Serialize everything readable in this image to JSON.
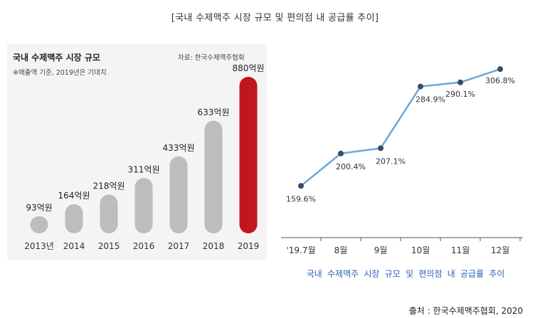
{
  "page": {
    "title": "[국내 수제맥주 시장 규모 및 편의점 내 공급률 추이]",
    "caption": "국내 수제맥주 시장 규모 및 편의점 내 공급률 추이",
    "source": "출처 : 한국수제맥주협회, 2020"
  },
  "colors": {
    "bar_default": "#bdbdbd",
    "bar_highlight": "#c0181c",
    "line": "#6aa8d8",
    "marker": "#3b4a63",
    "caption": "#2d63b5",
    "panel": "#f4f4f4"
  },
  "chart_data": [
    {
      "type": "bar",
      "title": "국내 수제맥주 시장 규모",
      "note": "※매출액 기준, 2019년은 기대치",
      "source": "자료: 한국수제맥주협회",
      "categories": [
        "2013년",
        "2014",
        "2015",
        "2016",
        "2017",
        "2018",
        "2019"
      ],
      "values": [
        93,
        164,
        218,
        311,
        433,
        633,
        880
      ],
      "value_labels": [
        "93억원",
        "164억원",
        "218억원",
        "311억원",
        "433억원",
        "633억원",
        "880억원"
      ],
      "highlight_index": 6,
      "grid": false
    },
    {
      "type": "line",
      "categories": [
        "'19.7월",
        "8월",
        "9월",
        "10월",
        "11월",
        "12월"
      ],
      "values": [
        159.6,
        200.4,
        207.1,
        284.9,
        290.1,
        306.8
      ],
      "value_labels": [
        "159.6%",
        "200.4%",
        "207.1%",
        "284.9%",
        "290.1%",
        "306.8%"
      ],
      "grid": false
    }
  ]
}
